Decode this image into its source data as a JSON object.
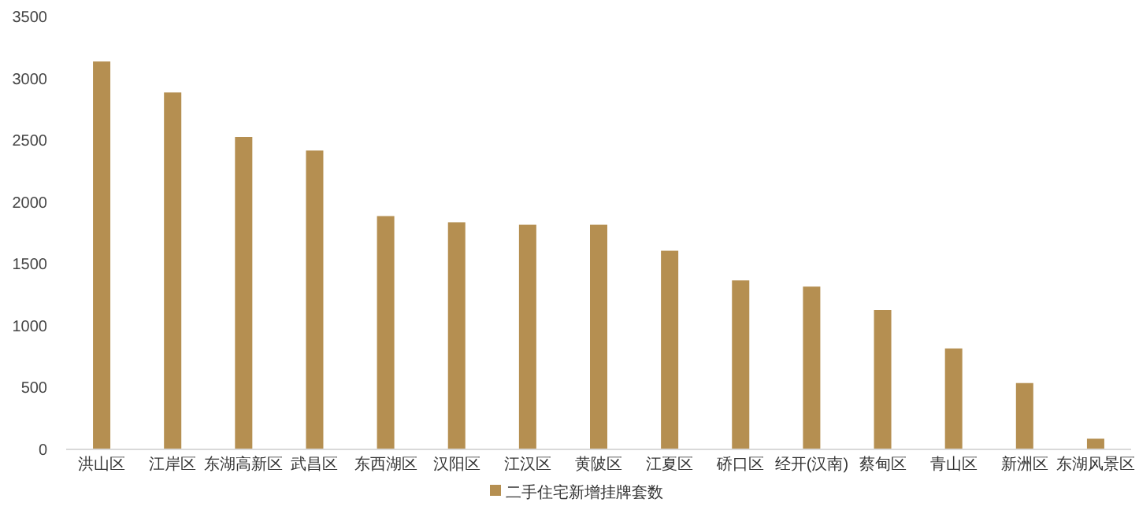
{
  "chart_data": {
    "type": "bar",
    "categories": [
      "洪山区",
      "江岸区",
      "东湖高新区",
      "武昌区",
      "东西湖区",
      "汉阳区",
      "江汉区",
      "黄陂区",
      "江夏区",
      "硚口区",
      "经开(汉南)",
      "蔡甸区",
      "青山区",
      "新洲区",
      "东湖风景区"
    ],
    "series": [
      {
        "name": "二手住宅新增挂牌套数",
        "color": "#b58f51",
        "values": [
          3130,
          2880,
          2520,
          2410,
          1880,
          1830,
          1810,
          1810,
          1600,
          1360,
          1310,
          1120,
          810,
          530,
          80
        ]
      }
    ],
    "ylim": [
      0,
      3500
    ],
    "yticks": [
      0,
      500,
      1000,
      1500,
      2000,
      2500,
      3000,
      3500
    ],
    "grid": false,
    "legend": "bottom"
  }
}
